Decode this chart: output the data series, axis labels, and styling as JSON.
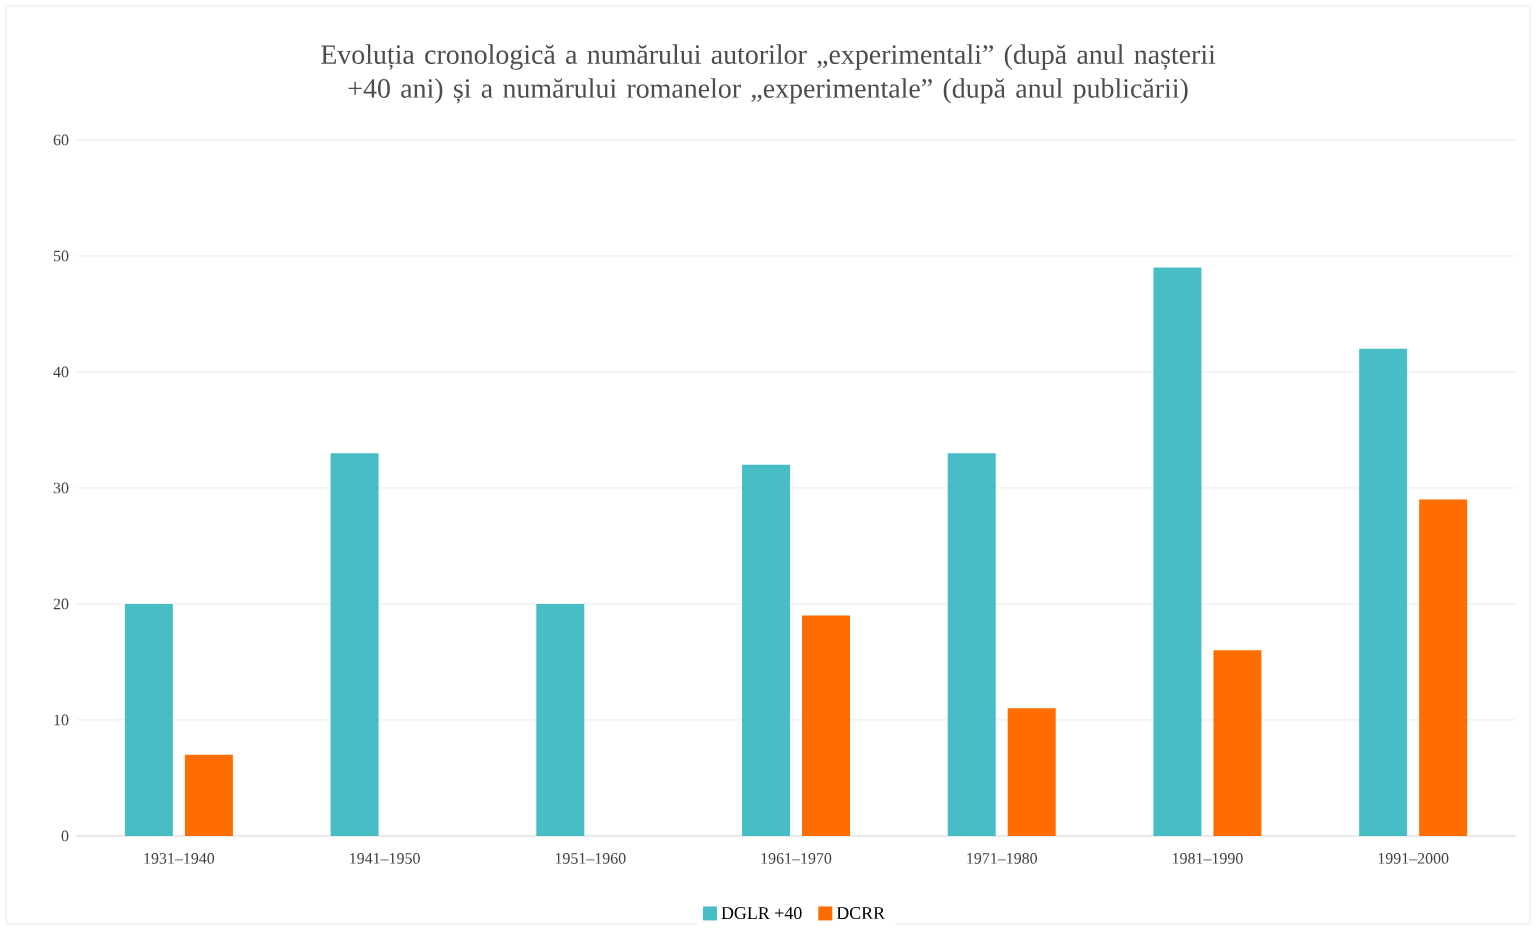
{
  "chart_data": {
    "type": "bar",
    "title": "Evoluția cronologică a numărului autorilor „experimentali” (după anul nașterii +40 ani) și a numărului romanelor „experimentale” (după anul publicării)",
    "categories": [
      "1931–1940",
      "1941–1950",
      "1951–1960",
      "1961–1970",
      "1971–1980",
      "1981–1990",
      "1991–2000"
    ],
    "series": [
      {
        "name": "DGLR +40",
        "color": "#47bdc6",
        "values": [
          20,
          33,
          20,
          32,
          33,
          49,
          42
        ]
      },
      {
        "name": "DCRR",
        "color": "#ff6d00",
        "values": [
          7,
          null,
          null,
          19,
          11,
          16,
          29
        ]
      }
    ],
    "ylim": [
      0,
      60
    ],
    "yticks": [
      0,
      10,
      20,
      30,
      40,
      50,
      60
    ],
    "grid": "y",
    "legend": "bottom"
  }
}
